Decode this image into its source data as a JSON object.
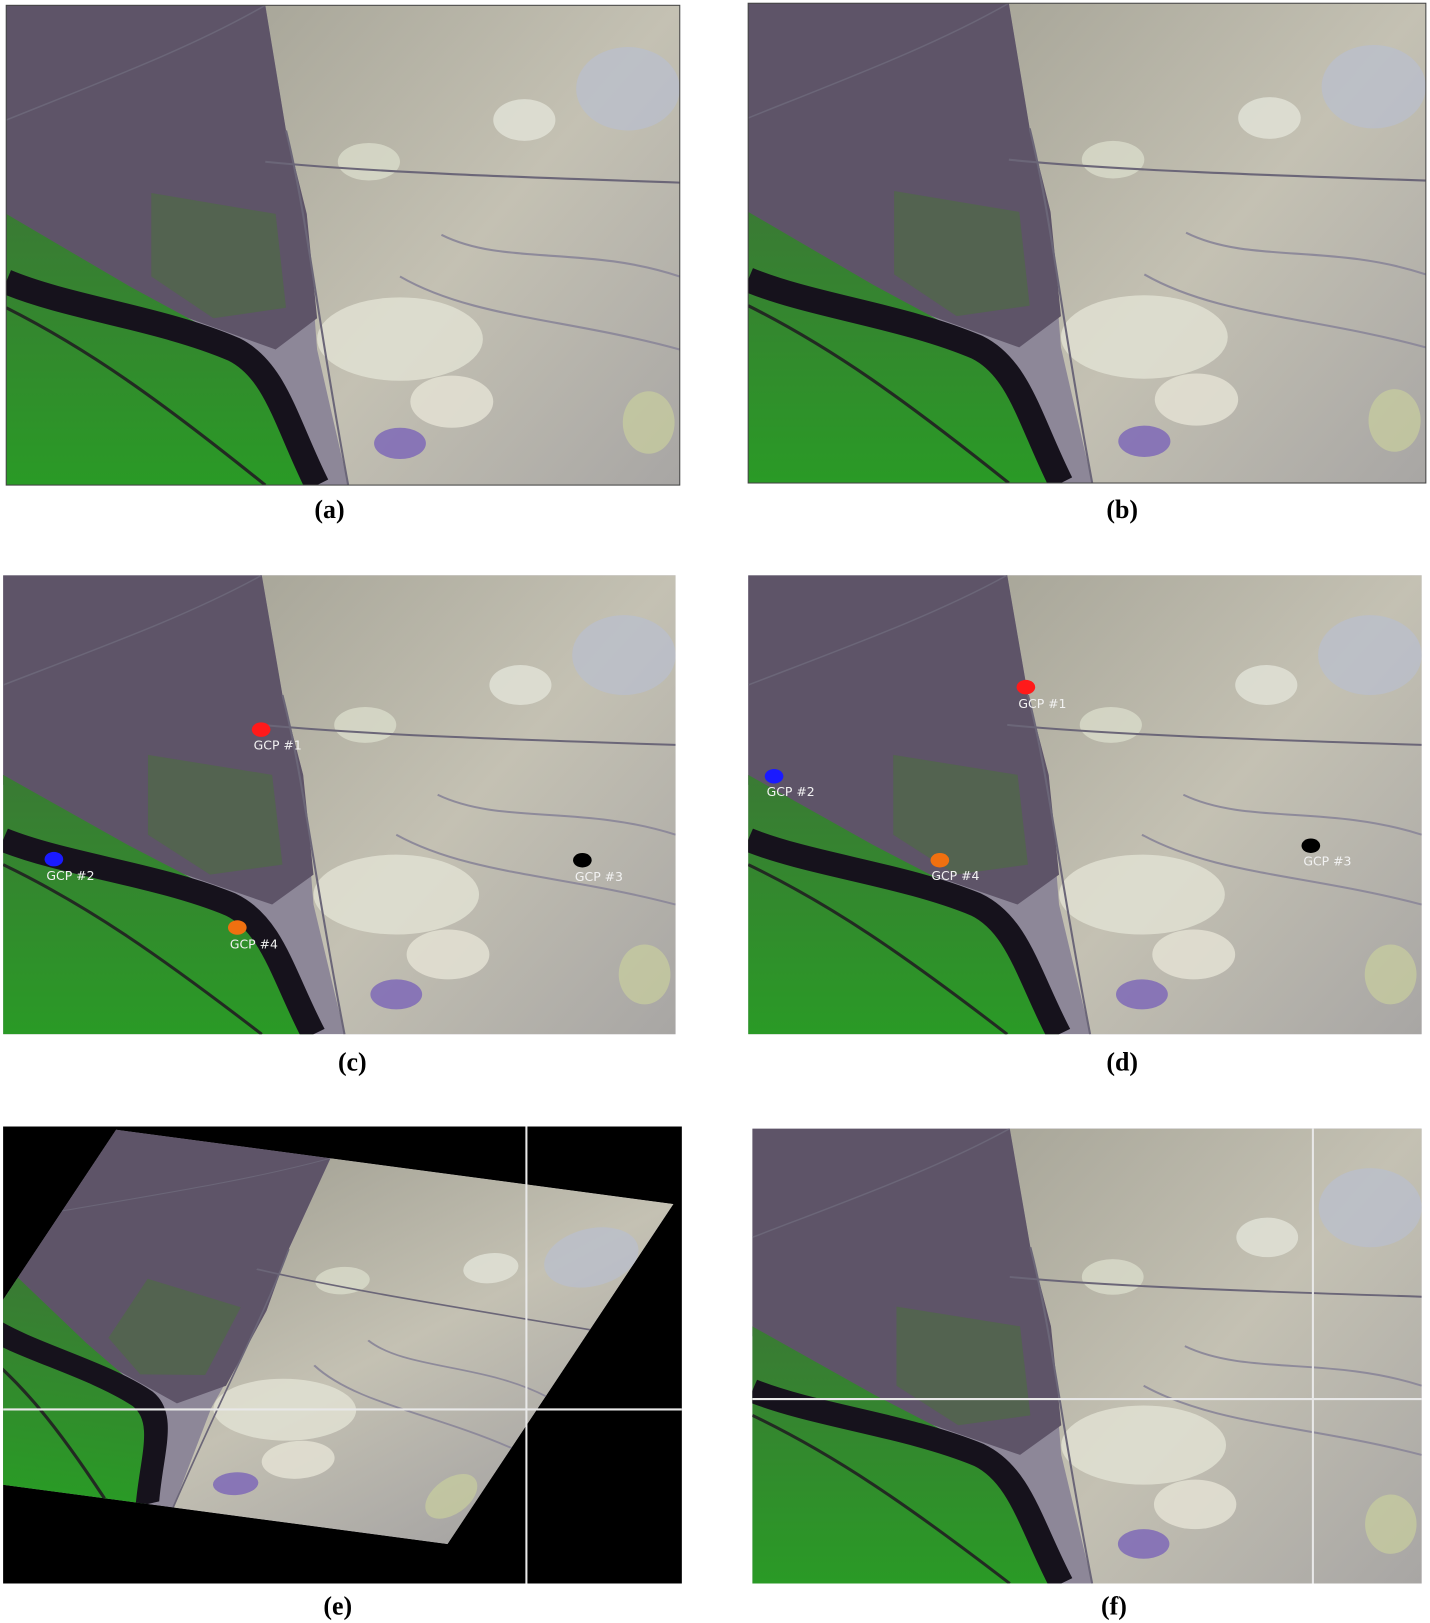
{
  "panels": [
    {
      "label": "(a)"
    },
    {
      "label": "(b)"
    },
    {
      "label": "(c)",
      "gcps": [
        "GCP #1",
        "GCP #2",
        "GCP #3",
        "GCP #4"
      ]
    },
    {
      "label": "(d)",
      "gcps": [
        "GCP #1",
        "GCP #2",
        "GCP #3",
        "GCP #4"
      ]
    },
    {
      "label": "(e)"
    },
    {
      "label": "(f)"
    }
  ]
}
